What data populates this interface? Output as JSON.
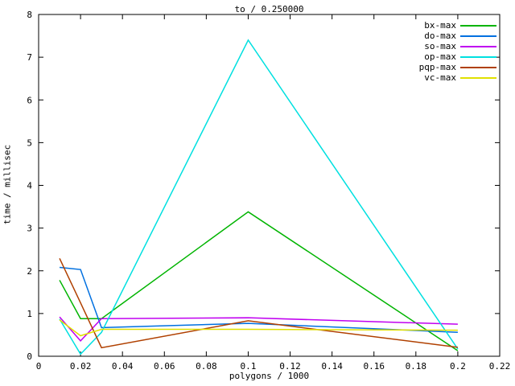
{
  "title": "to / 0.250000",
  "chart_data": {
    "type": "line",
    "title": "to / 0.250000",
    "xlabel": "polygons / 1000",
    "ylabel": "time / millisec",
    "xlim": [
      0,
      0.22
    ],
    "ylim": [
      0,
      8
    ],
    "grid": false,
    "legend_position": "top-right",
    "x_ticks": {
      "values": [
        0,
        0.02,
        0.04,
        0.06,
        0.08,
        0.1,
        0.12,
        0.14,
        0.16,
        0.18,
        0.2,
        0.22
      ],
      "labels": [
        "0",
        "0.02",
        "0.04",
        "0.06",
        "0.08",
        "0.1",
        "0.12",
        "0.14",
        "0.16",
        "0.18",
        "0.2",
        "0.22"
      ]
    },
    "y_ticks": {
      "values": [
        0,
        1,
        2,
        3,
        4,
        5,
        6,
        7,
        8
      ],
      "labels": [
        "0",
        "1",
        "2",
        "3",
        "4",
        "5",
        "6",
        "7",
        "8"
      ]
    },
    "x": [
      0.01,
      0.02,
      0.03,
      0.1,
      0.2
    ],
    "series": [
      {
        "name": "bx-max",
        "color": "#00b400",
        "values": [
          1.78,
          0.88,
          0.88,
          3.38,
          0.13
        ]
      },
      {
        "name": "do-max",
        "color": "#0070e0",
        "values": [
          2.08,
          2.03,
          0.67,
          0.77,
          0.56
        ]
      },
      {
        "name": "so-max",
        "color": "#c000f0",
        "values": [
          0.92,
          0.36,
          0.88,
          0.9,
          0.75
        ]
      },
      {
        "name": "op-max",
        "color": "#00e0e0",
        "values": [
          0.87,
          0.05,
          0.56,
          7.4,
          0.17
        ]
      },
      {
        "name": "pqp-max",
        "color": "#b04000",
        "values": [
          2.29,
          1.25,
          0.2,
          0.83,
          0.21
        ]
      },
      {
        "name": "vc-max",
        "color": "#e0e000",
        "values": [
          0.85,
          0.48,
          0.63,
          0.63,
          0.61
        ]
      }
    ],
    "colors": {
      "background": "#ffffff",
      "axis": "#000000",
      "text": "#000000"
    }
  }
}
